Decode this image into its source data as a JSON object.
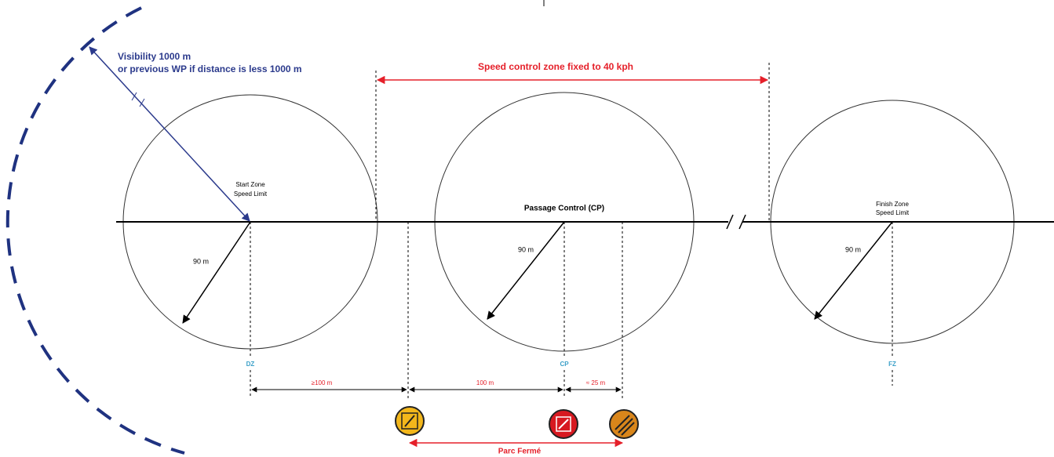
{
  "visibility": {
    "line1": "Visibility 1000 m",
    "line2": "or previous WP if distance is less 1000 m"
  },
  "speed_zone": "Speed control zone fixed to 40 kph",
  "start_zone": {
    "line1": "Start Zone",
    "line2": "Speed Limit",
    "radius": "90 m",
    "marker": "DZ"
  },
  "passage_control": {
    "label": "Passage Control (CP)",
    "radius": "90 m",
    "marker": "CP"
  },
  "finish_zone": {
    "line1": "Finish Zone",
    "line2": "Speed Limit",
    "radius": "90 m",
    "marker": "FZ"
  },
  "distances": [
    "≥100 m",
    "100 m",
    "≈ 25 m"
  ],
  "parc_ferme": "Parc Fermé"
}
